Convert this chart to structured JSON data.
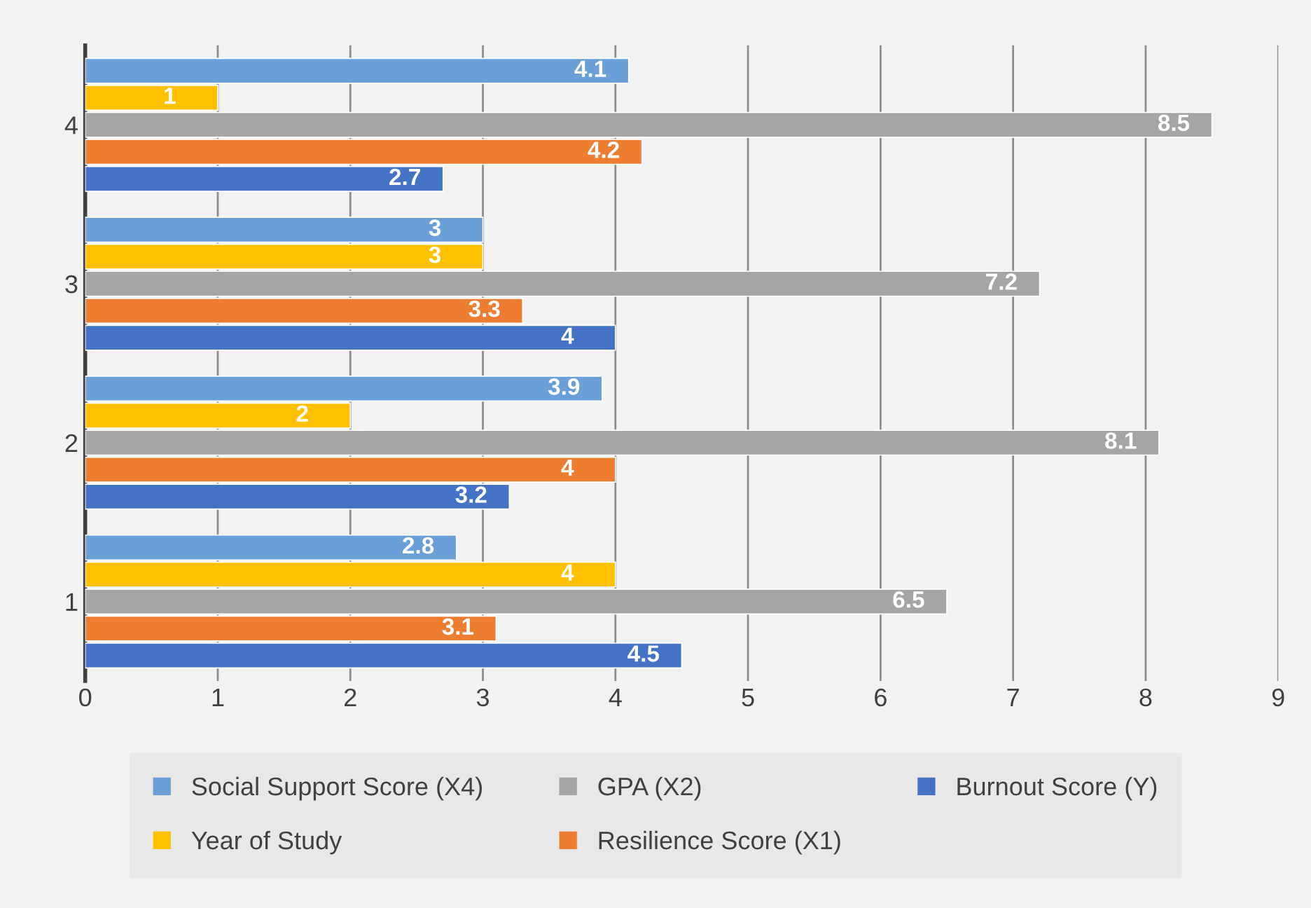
{
  "chart_data": {
    "type": "bar",
    "orientation": "horizontal",
    "categories": [
      "4",
      "3",
      "2",
      "1"
    ],
    "series": [
      {
        "name": "Social Support Score (X4)",
        "color": "#6a9fd8",
        "values": [
          4.1,
          3,
          3.9,
          2.8
        ]
      },
      {
        "name": "Year of Study",
        "color": "#ffc000",
        "values": [
          1,
          3,
          2,
          4
        ]
      },
      {
        "name": "GPA (X2)",
        "color": "#a5a5a5",
        "values": [
          8.5,
          7.2,
          8.1,
          6.5
        ]
      },
      {
        "name": "Resilience Score (X1)",
        "color": "#ed7d31",
        "values": [
          4.2,
          3.3,
          4,
          3.1
        ]
      },
      {
        "name": "Burnout Score (Y)",
        "color": "#4472c4",
        "values": [
          2.7,
          4,
          3.2,
          4.5
        ]
      }
    ],
    "xlim": [
      0,
      9
    ],
    "xticks": [
      0,
      1,
      2,
      3,
      4,
      5,
      6,
      7,
      8,
      9
    ],
    "grid": "x",
    "legend": "bottom",
    "data_labels": true
  }
}
